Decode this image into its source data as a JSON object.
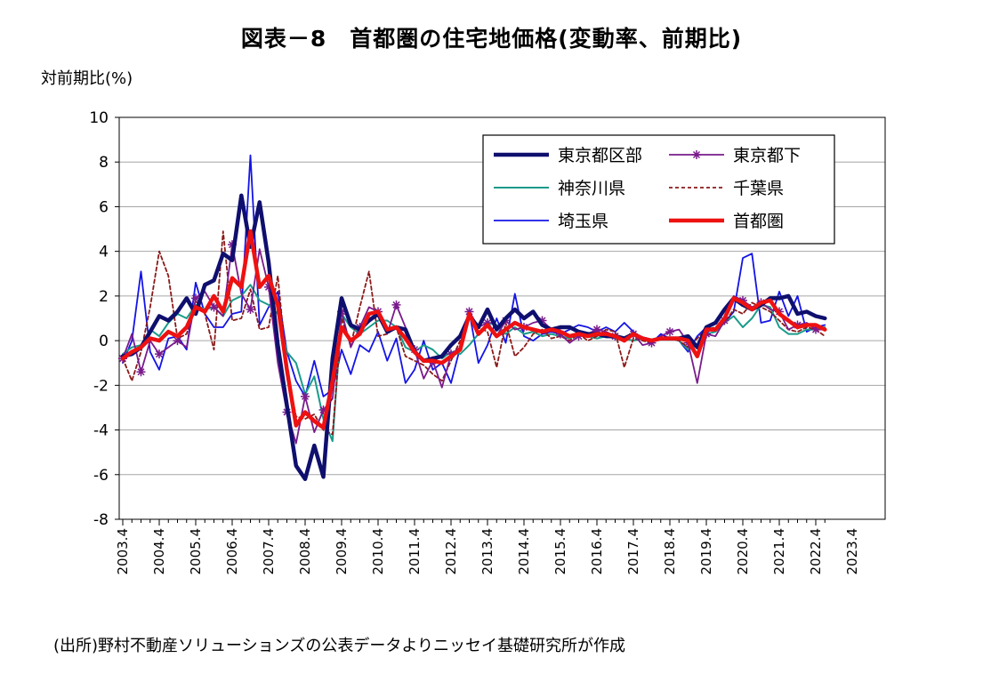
{
  "chart_data": {
    "type": "line",
    "title": "図表－8　首都圏の住宅地価格(変動率、前期比)",
    "ylabel": "対前期比(%)",
    "source": "(出所)野村不動産ソリューションズの公表データよりニッセイ基礎研究所が作成",
    "ylim": [
      -8,
      10
    ],
    "yticks": [
      -8,
      -6,
      -4,
      -2,
      0,
      2,
      4,
      6,
      8,
      10
    ],
    "grid": true,
    "legend_position": "top-right",
    "x_tick_labels": [
      "2003.4",
      "2004.4",
      "2005.4",
      "2006.4",
      "2007.4",
      "2008.4",
      "2009.4",
      "2010.4",
      "2011.4",
      "2012.4",
      "2013.4",
      "2014.4",
      "2015.4",
      "2016.4",
      "2017.4",
      "2018.4",
      "2019.4",
      "2020.4",
      "2021.4",
      "2022.4",
      "2023.4"
    ],
    "x_start": "2003.4",
    "period": "quarterly",
    "series": [
      {
        "name": "埼玉県",
        "color": "#1414e6",
        "dash": "",
        "marker": "",
        "values": [
          -1.0,
          0.0,
          3.1,
          -0.5,
          -1.3,
          0.1,
          0.2,
          -0.4,
          2.6,
          1.2,
          0.6,
          0.6,
          1.2,
          1.3,
          8.3,
          0.7,
          1.5,
          2.2,
          -0.5,
          -1.8,
          -2.5,
          -0.9,
          -2.5,
          -2.2,
          -0.4,
          -1.5,
          -0.2,
          -0.5,
          0.4,
          -0.9,
          0.1,
          -1.9,
          -1.3,
          0.0,
          -1.3,
          -1.0,
          -1.9,
          -0.3,
          1.3,
          -1.0,
          -0.2,
          1.0,
          -0.1,
          2.1,
          0.2,
          0.0,
          0.3,
          0.4,
          0.3,
          0.5,
          0.7,
          0.6,
          0.4,
          0.6,
          0.4,
          0.8,
          0.4,
          0.1,
          -0.1,
          0.3,
          0.1,
          0.0,
          -0.5,
          0.2,
          0.6,
          0.5,
          0.8,
          1.3,
          3.7,
          3.9,
          0.8,
          0.9,
          2.2,
          1.1,
          2.0,
          0.4,
          0.6,
          0.7
        ]
      },
      {
        "name": "神奈川県",
        "color": "#1a9b8a",
        "dash": "",
        "marker": "",
        "values": [
          -0.6,
          -0.3,
          -0.2,
          0.5,
          0.2,
          0.8,
          1.2,
          1.0,
          1.6,
          1.4,
          1.5,
          1.1,
          1.8,
          2.0,
          2.5,
          1.8,
          1.6,
          1.2,
          -0.5,
          -1.0,
          -2.4,
          -1.6,
          -3.5,
          -4.5,
          1.2,
          0.6,
          0.3,
          0.6,
          0.9,
          0.9,
          0.6,
          -0.3,
          -0.5,
          -0.2,
          -0.4,
          -0.8,
          -0.5,
          -0.6,
          -0.2,
          0.3,
          0.8,
          0.7,
          0.3,
          0.6,
          0.3,
          0.4,
          0.2,
          0.3,
          0.2,
          0.1,
          0.3,
          0.2,
          0.1,
          0.2,
          0.1,
          0.1,
          0.0,
          0.1,
          0.0,
          0.1,
          0.1,
          0.0,
          -0.4,
          -0.2,
          0.3,
          0.4,
          0.8,
          1.1,
          0.6,
          1.0,
          1.6,
          1.5,
          0.6,
          0.3,
          0.3,
          0.5,
          0.5,
          0.6
        ]
      },
      {
        "name": "千葉県",
        "color": "#8b1a1a",
        "dash": "4,3",
        "marker": "",
        "values": [
          -0.8,
          -1.8,
          -0.5,
          1.5,
          4.0,
          2.9,
          0.1,
          0.3,
          1.8,
          1.2,
          -0.4,
          4.9,
          0.9,
          1.0,
          2.3,
          0.5,
          0.6,
          2.9,
          -1.3,
          -3.4,
          -3.5,
          -3.3,
          -4.0,
          -4.2,
          1.0,
          -0.2,
          1.5,
          3.1,
          0.2,
          0.3,
          0.6,
          -0.7,
          -0.9,
          -1.1,
          -1.5,
          -1.8,
          -0.9,
          0.0,
          1.3,
          0.6,
          0.4,
          -1.2,
          0.8,
          -0.7,
          -0.3,
          0.3,
          0.5,
          0.1,
          0.2,
          0.0,
          0.3,
          0.0,
          0.2,
          0.5,
          0.4,
          -1.2,
          0.1,
          0.0,
          -0.1,
          0.2,
          0.1,
          0.0,
          -0.3,
          0.1,
          0.5,
          0.6,
          0.8,
          1.4,
          1.2,
          1.7,
          1.5,
          1.3,
          0.9,
          0.5,
          0.4,
          0.6,
          0.5,
          0.2
        ]
      },
      {
        "name": "東京都下",
        "color": "#7a1b8c",
        "dash": "",
        "marker": "asterisk",
        "values": [
          -0.8,
          0.3,
          -1.4,
          0.0,
          -0.6,
          -0.3,
          0.0,
          -0.3,
          1.9,
          2.2,
          1.5,
          1.1,
          4.3,
          2.1,
          1.4,
          4.1,
          2.4,
          -1.0,
          -3.2,
          -4.6,
          -2.5,
          -4.1,
          -3.1,
          -2.6,
          1.3,
          -0.3,
          0.6,
          1.5,
          1.3,
          0.3,
          1.6,
          0.6,
          -0.4,
          -1.7,
          -0.9,
          -2.1,
          -0.6,
          -0.3,
          1.3,
          0.6,
          0.8,
          0.2,
          0.9,
          0.5,
          0.6,
          0.8,
          0.9,
          0.5,
          0.3,
          -0.1,
          0.2,
          0.3,
          0.5,
          0.4,
          0.2,
          0.1,
          0.3,
          -0.2,
          -0.1,
          0.2,
          0.4,
          0.5,
          -0.1,
          -1.9,
          0.3,
          0.2,
          0.9,
          2.0,
          1.8,
          1.5,
          1.7,
          1.4,
          1.3,
          0.5,
          0.7,
          0.8,
          0.5,
          0.5
        ]
      },
      {
        "name": "東京都区部",
        "color": "#0f0f6e",
        "dash": "",
        "marker": "",
        "values": [
          -0.7,
          -0.6,
          -0.3,
          0.4,
          1.1,
          0.9,
          1.3,
          1.9,
          1.2,
          2.5,
          2.7,
          3.9,
          3.6,
          6.5,
          4.2,
          6.2,
          3.5,
          -0.2,
          -2.9,
          -5.6,
          -6.2,
          -4.7,
          -6.1,
          -0.8,
          1.9,
          0.7,
          0.5,
          0.9,
          1.2,
          0.4,
          0.6,
          0.5,
          -0.5,
          -0.9,
          -0.8,
          -0.7,
          -0.2,
          0.2,
          1.1,
          0.6,
          1.4,
          0.5,
          1.0,
          1.4,
          1.0,
          1.3,
          0.7,
          0.5,
          0.6,
          0.6,
          0.4,
          0.3,
          0.3,
          0.2,
          0.2,
          0.1,
          0.3,
          0.1,
          0.0,
          0.1,
          0.1,
          0.1,
          0.2,
          -0.3,
          0.6,
          0.8,
          1.4,
          1.9,
          1.6,
          1.4,
          1.6,
          1.9,
          1.9,
          2.0,
          1.2,
          1.3,
          1.1,
          1.0
        ]
      },
      {
        "name": "首都圏",
        "color": "#ee1111",
        "dash": "",
        "marker": "",
        "values": [
          -0.8,
          -0.5,
          -0.3,
          0.1,
          0.0,
          0.4,
          0.2,
          0.6,
          1.5,
          1.3,
          2.0,
          1.3,
          2.8,
          2.4,
          4.9,
          2.4,
          2.9,
          1.6,
          -1.3,
          -3.8,
          -3.2,
          -3.6,
          -3.9,
          -1.8,
          0.6,
          0.0,
          0.3,
          1.2,
          1.3,
          0.5,
          0.6,
          0.1,
          -0.5,
          -0.9,
          -0.9,
          -1.0,
          -0.7,
          -0.4,
          1.2,
          0.3,
          0.7,
          0.2,
          0.5,
          0.8,
          0.6,
          0.5,
          0.4,
          0.5,
          0.4,
          0.2,
          0.3,
          0.2,
          0.3,
          0.3,
          0.2,
          0.0,
          0.3,
          0.1,
          0.0,
          0.1,
          0.1,
          0.1,
          0.0,
          -0.7,
          0.5,
          0.5,
          1.0,
          1.9,
          1.7,
          1.4,
          1.7,
          1.8,
          1.2,
          0.9,
          0.6,
          0.7,
          0.7,
          0.5
        ]
      }
    ],
    "legend": [
      {
        "name": "東京都区部",
        "color": "#0f0f6e",
        "dash": "",
        "width": 4.5,
        "marker": ""
      },
      {
        "name": "東京都下",
        "color": "#7a1b8c",
        "dash": "",
        "width": 1.8,
        "marker": "asterisk"
      },
      {
        "name": "神奈川県",
        "color": "#1a9b8a",
        "dash": "",
        "width": 2,
        "marker": ""
      },
      {
        "name": "千葉県",
        "color": "#8b1a1a",
        "dash": "4,3",
        "width": 1.8,
        "marker": ""
      },
      {
        "name": "埼玉県",
        "color": "#1414e6",
        "dash": "",
        "width": 1.8,
        "marker": ""
      },
      {
        "name": "首都圏",
        "color": "#ee1111",
        "dash": "",
        "width": 4.5,
        "marker": ""
      }
    ]
  }
}
